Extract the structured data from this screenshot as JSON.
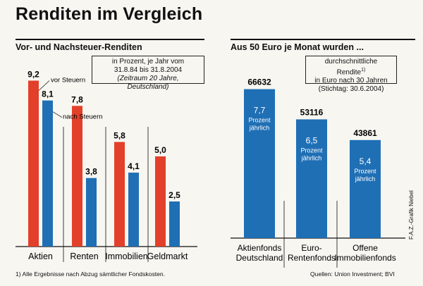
{
  "title": "Renditen im Vergleich",
  "colors": {
    "red": "#e2402a",
    "blue": "#1f6fb5",
    "ink": "#111111",
    "paper": "#f7f6f1"
  },
  "chart_data": [
    {
      "type": "bar",
      "title": "Vor- und Nachsteuer-Renditen",
      "categories": [
        "Aktien",
        "Renten",
        "Immobilien",
        "Geldmarkt"
      ],
      "series": [
        {
          "name": "vor Steuern",
          "color": "#e2402a",
          "values": [
            9.2,
            7.8,
            5.8,
            5.0
          ],
          "labels": [
            "9,2",
            "7,8",
            "5,8",
            "5,0"
          ]
        },
        {
          "name": "nach Steuern",
          "color": "#1f6fb5",
          "values": [
            8.1,
            3.8,
            4.1,
            2.5
          ],
          "labels": [
            "8,1",
            "3,8",
            "4,1",
            "2,5"
          ]
        }
      ],
      "ylim": [
        0,
        10.0
      ],
      "annotation": [
        "in Prozent, je Jahr vom",
        "31.8.84 bis 31.8.2004",
        "(Zeitraum 20 Jahre, Deutschland)"
      ],
      "footnote": "1) Alle Ergebnisse nach Abzug sämtlicher Fondskosten."
    },
    {
      "type": "bar",
      "title": "Aus 50 Euro je Monat wurden ...",
      "categories": [
        [
          "Aktienfonds",
          "Deutschland"
        ],
        [
          "Euro-",
          "Rentenfonds"
        ],
        [
          "Offene",
          "Immobilienfonds"
        ]
      ],
      "values": [
        66632,
        53116,
        43861
      ],
      "value_labels": [
        "66632",
        "53116",
        "43861"
      ],
      "inner_labels": [
        {
          "rate": "7,7",
          "lines": [
            "Prozent",
            "jährlich"
          ]
        },
        {
          "rate": "6,5",
          "lines": [
            "Prozent",
            "jährlich"
          ]
        },
        {
          "rate": "5,4",
          "lines": [
            "Prozent",
            "jährlich"
          ]
        }
      ],
      "ylim": [
        0,
        75000
      ],
      "annotation": [
        "durchschnittliche Rendite",
        "in Euro nach 30 Jahren",
        "(Stichtag: 30.6.2004)"
      ],
      "annotation_sup": "1)",
      "source": "Quellen: Union Investment; BVI",
      "credit": "F.A.Z.-Grafik Niebel"
    }
  ]
}
